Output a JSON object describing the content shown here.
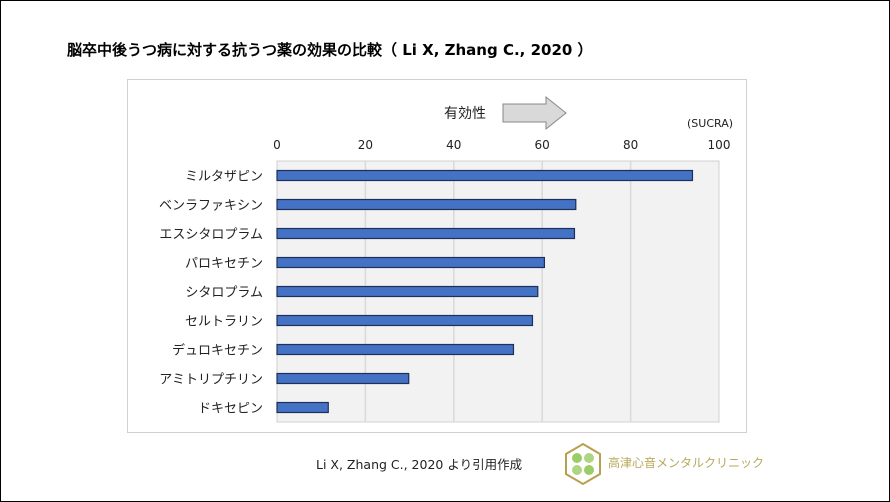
{
  "title": "脳卒中後うつ病に対する抗うつ薬の効果の比較（ Li X, Zhang C., 2020 ）",
  "citation": "Li X, Zhang C., 2020 より引用作成",
  "clinic_name": "高津心音メンタルクリニック",
  "colors": {
    "bar": "#4472c4",
    "bar_border": "#1f2f5c",
    "plot_bg": "#f2f2f2",
    "grid": "#d9d9d9"
  },
  "chart_data": {
    "type": "bar",
    "orientation": "horizontal",
    "title": "脳卒中後うつ病に対する抗うつ薬の効果の比較（ Li X, Zhang C., 2020 ）",
    "arrow_label": "有効性",
    "unit_label": "(SUCRA)",
    "xlim": [
      0,
      100
    ],
    "xticks": [
      0,
      20,
      40,
      60,
      80,
      100
    ],
    "grid": true,
    "categories": [
      "ミルタザピン",
      "ベンラファキシン",
      "エスシタロプラム",
      "パロキセチン",
      "シタロプラム",
      "セルトラリン",
      "デュロキセチン",
      "アミトリプチリン",
      "ドキセピン"
    ],
    "values": [
      94.0,
      67.6,
      67.3,
      60.5,
      59.0,
      57.8,
      53.5,
      29.8,
      11.6
    ]
  }
}
